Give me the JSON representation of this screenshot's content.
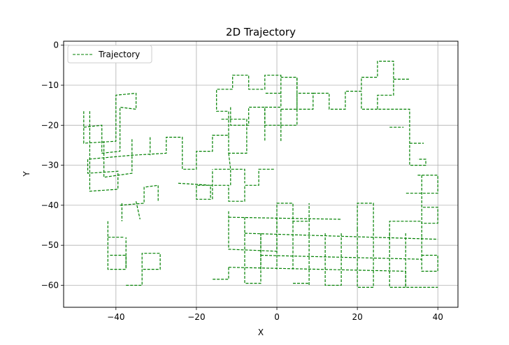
{
  "chart_data": {
    "type": "line",
    "title": "2D Trajectory",
    "xlabel": "X",
    "ylabel": "Y",
    "xlim": [
      -53,
      45
    ],
    "ylim": [
      -65.5,
      1
    ],
    "xticks": [
      -40,
      -20,
      0,
      20,
      40
    ],
    "yticks": [
      0,
      -10,
      -20,
      -30,
      -40,
      -50,
      -60
    ],
    "grid": true,
    "legend_position": "upper-left",
    "series": [
      {
        "name": "Trajectory",
        "color": "#008000",
        "line_style": "dashed",
        "paths": [
          [
            [
              -48,
              -16.5
            ],
            [
              -48,
              -24.5
            ],
            [
              -40,
              -24
            ],
            [
              -40,
              -12.5
            ],
            [
              -35,
              -12
            ],
            [
              -35,
              -16
            ],
            [
              -39,
              -15.5
            ],
            [
              -39,
              -26.5
            ],
            [
              -43.5,
              -27
            ],
            [
              -43.5,
              -20
            ],
            [
              -48,
              -20.5
            ]
          ],
          [
            [
              -46.5,
              -16.5
            ],
            [
              -46.5,
              -36.5
            ],
            [
              -39.5,
              -36
            ],
            [
              -39.5,
              -31.5
            ],
            [
              -47,
              -32
            ],
            [
              -47,
              -28.5
            ],
            [
              -36,
              -27.5
            ],
            [
              -27.5,
              -27
            ],
            [
              -27.5,
              -23
            ],
            [
              -23.5,
              -23
            ],
            [
              -23.5,
              -31
            ],
            [
              -20,
              -31
            ],
            [
              -20,
              -26.5
            ],
            [
              -16,
              -26.5
            ],
            [
              -16,
              -22.5
            ],
            [
              -12,
              -22.5
            ],
            [
              -12,
              -27
            ],
            [
              -7.5,
              -27
            ],
            [
              -7.5,
              -18.5
            ],
            [
              -14,
              -18.5
            ]
          ],
          [
            [
              -31.5,
              -23
            ],
            [
              -31.5,
              -27.5
            ]
          ],
          [
            [
              -36,
              -23.5
            ],
            [
              -36,
              -32
            ],
            [
              -43,
              -33
            ],
            [
              -43,
              -24
            ]
          ],
          [
            [
              -39,
              -40
            ],
            [
              -33,
              -39.5
            ],
            [
              -33,
              -35.5
            ],
            [
              -29.5,
              -35
            ],
            [
              -29.5,
              -39
            ]
          ],
          [
            [
              -38.5,
              -39.5
            ],
            [
              -38.5,
              -44
            ]
          ],
          [
            [
              -35,
              -39
            ],
            [
              -34,
              -43.5
            ]
          ],
          [
            [
              -42,
              -44
            ],
            [
              -42,
              -56
            ],
            [
              -37.5,
              -56
            ],
            [
              -37.5,
              -48
            ]
          ],
          [
            [
              -42,
              -48
            ],
            [
              -38,
              -48
            ]
          ],
          [
            [
              -37.5,
              -60
            ],
            [
              -33.5,
              -60
            ],
            [
              -33.5,
              -52
            ],
            [
              -29,
              -52
            ],
            [
              -29,
              -56
            ],
            [
              -33.5,
              -56
            ]
          ],
          [
            [
              -37.5,
              -55.5
            ],
            [
              -37.5,
              -52.5
            ],
            [
              -41.5,
              -52.5
            ]
          ],
          [
            [
              -24.5,
              -34.5
            ],
            [
              -16.5,
              -35
            ],
            [
              -16.5,
              -38.5
            ],
            [
              -20,
              -38.5
            ],
            [
              -20,
              -35
            ],
            [
              -12,
              -35
            ],
            [
              -12,
              -39
            ],
            [
              -8,
              -39
            ],
            [
              -8,
              -35
            ],
            [
              -4.5,
              -35
            ],
            [
              -4.5,
              -31
            ],
            [
              -0.5,
              -31
            ]
          ],
          [
            [
              -16,
              -38.5
            ],
            [
              -16,
              -31
            ]
          ],
          [
            [
              -15.5,
              -31
            ],
            [
              -8,
              -31
            ],
            [
              -8,
              -34.5
            ]
          ],
          [
            [
              -11.5,
              -35
            ],
            [
              -11.5,
              -31
            ],
            [
              -12,
              -27
            ]
          ],
          [
            [
              -12,
              -22.5
            ],
            [
              -12,
              -16.5
            ],
            [
              -15,
              -16.5
            ],
            [
              -15,
              -11
            ],
            [
              -11,
              -11
            ],
            [
              -11,
              -7.5
            ],
            [
              -7,
              -7.5
            ],
            [
              -7,
              -11
            ],
            [
              -3,
              -11
            ],
            [
              -3,
              -7.5
            ],
            [
              1,
              -7.5
            ],
            [
              1,
              -15.5
            ],
            [
              -3,
              -15.5
            ],
            [
              -3,
              -24
            ]
          ],
          [
            [
              -11.5,
              -15.5
            ],
            [
              -11.5,
              -20
            ],
            [
              -7,
              -20
            ],
            [
              -7,
              -15.5
            ],
            [
              -3,
              -15.5
            ],
            [
              -3,
              -20
            ],
            [
              1,
              -20
            ],
            [
              1,
              -24
            ]
          ],
          [
            [
              1,
              -16
            ],
            [
              5,
              -16
            ],
            [
              5,
              -12
            ],
            [
              9,
              -12
            ],
            [
              9,
              -16
            ],
            [
              5,
              -16
            ],
            [
              5,
              -8
            ],
            [
              1,
              -8
            ]
          ],
          [
            [
              1,
              -12
            ],
            [
              -3,
              -12
            ]
          ],
          [
            [
              5,
              -16
            ],
            [
              5,
              -20
            ],
            [
              1,
              -20
            ]
          ],
          [
            [
              1,
              -16
            ],
            [
              1,
              -20
            ]
          ],
          [
            [
              5,
              -11
            ],
            [
              5,
              -8
            ]
          ],
          [
            [
              9,
              -12
            ],
            [
              13,
              -12
            ],
            [
              13,
              -16
            ],
            [
              17,
              -16
            ],
            [
              17,
              -11.5
            ],
            [
              21,
              -11.5
            ],
            [
              21,
              -8
            ],
            [
              25,
              -8
            ],
            [
              25,
              -4
            ],
            [
              29,
              -4
            ],
            [
              29,
              -12.5
            ],
            [
              25,
              -12.5
            ],
            [
              25,
              -16
            ],
            [
              33,
              -16
            ],
            [
              33,
              -23
            ],
            [
              33,
              -30
            ],
            [
              37,
              -30
            ],
            [
              37,
              -28.5
            ],
            [
              35,
              -28.5
            ]
          ],
          [
            [
              21,
              -12
            ],
            [
              21,
              -16
            ],
            [
              25,
              -16
            ]
          ],
          [
            [
              29,
              -8.5
            ],
            [
              33,
              -8.5
            ]
          ],
          [
            [
              28,
              -20.5
            ],
            [
              31.5,
              -20.5
            ]
          ],
          [
            [
              33,
              -24.5
            ],
            [
              36.5,
              -24.5
            ]
          ],
          [
            [
              35,
              -32.5
            ],
            [
              40,
              -32.5
            ],
            [
              40,
              -37
            ],
            [
              32,
              -37
            ]
          ],
          [
            [
              36,
              -32.5
            ],
            [
              36,
              -44.5
            ],
            [
              40,
              -44.5
            ],
            [
              40,
              -40.5
            ],
            [
              36,
              -40.5
            ]
          ],
          [
            [
              -12,
              -41.5
            ],
            [
              -12,
              -51
            ],
            [
              0,
              -51.5
            ],
            [
              0,
              -39.5
            ],
            [
              4,
              -39.5
            ],
            [
              4,
              -44
            ],
            [
              8,
              -44
            ],
            [
              8,
              -39.5
            ]
          ],
          [
            [
              -12,
              -43
            ],
            [
              16,
              -43.5
            ]
          ],
          [
            [
              -8,
              -43
            ],
            [
              -8,
              -59.5
            ],
            [
              -4,
              -59.5
            ],
            [
              -4,
              -47
            ]
          ],
          [
            [
              -8,
              -47
            ],
            [
              40,
              -48.5
            ]
          ],
          [
            [
              -4,
              -47
            ],
            [
              -4,
              -56
            ]
          ],
          [
            [
              0,
              -43
            ],
            [
              0,
              -56
            ]
          ],
          [
            [
              4,
              -44
            ],
            [
              4,
              -56
            ]
          ],
          [
            [
              8,
              -43.5
            ],
            [
              8,
              -60
            ]
          ],
          [
            [
              12,
              -47
            ],
            [
              12,
              -60
            ],
            [
              16,
              -60
            ],
            [
              16,
              -47
            ]
          ],
          [
            [
              20,
              -46
            ],
            [
              20,
              -60.5
            ],
            [
              24,
              -60.5
            ],
            [
              24,
              -46
            ]
          ],
          [
            [
              20,
              -46
            ],
            [
              20,
              -39.5
            ],
            [
              24,
              -39.5
            ],
            [
              24,
              -46
            ]
          ],
          [
            [
              28,
              -47
            ],
            [
              28,
              -60.5
            ],
            [
              32,
              -60.5
            ],
            [
              32,
              -47
            ]
          ],
          [
            [
              28,
              -48.5
            ],
            [
              28,
              -44
            ],
            [
              36,
              -44
            ],
            [
              36,
              -48
            ]
          ],
          [
            [
              36,
              -48
            ],
            [
              36,
              -56.5
            ],
            [
              40,
              -56.5
            ],
            [
              40,
              -52.5
            ],
            [
              36,
              -52.5
            ]
          ],
          [
            [
              -4,
              -52.5
            ],
            [
              36,
              -53.5
            ]
          ],
          [
            [
              -12,
              -55.5
            ],
            [
              32,
              -56.5
            ]
          ],
          [
            [
              -12,
              -55.5
            ],
            [
              -12,
              -58.5
            ],
            [
              -16,
              -58.5
            ]
          ],
          [
            [
              4,
              -59.5
            ],
            [
              8,
              -59.5
            ]
          ],
          [
            [
              32,
              -56.5
            ],
            [
              32,
              -60.5
            ],
            [
              40,
              -60.5
            ]
          ]
        ]
      }
    ]
  }
}
